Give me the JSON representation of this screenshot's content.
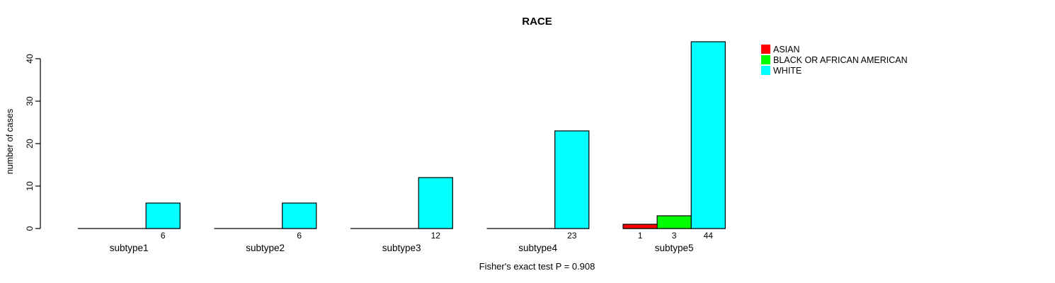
{
  "chart_data": {
    "type": "bar",
    "grouped": true,
    "title": "RACE",
    "ylabel": "number of cases",
    "categories": [
      "subtype1",
      "subtype2",
      "subtype3",
      "subtype4",
      "subtype5"
    ],
    "series": [
      {
        "name": "ASIAN",
        "color": "#ff0000",
        "values": [
          0,
          0,
          0,
          0,
          1
        ]
      },
      {
        "name": "BLACK OR AFRICAN AMERICAN",
        "color": "#00ff00",
        "values": [
          0,
          0,
          0,
          0,
          3
        ]
      },
      {
        "name": "WHITE",
        "color": "#00ffff",
        "values": [
          6,
          6,
          12,
          23,
          44
        ]
      }
    ],
    "yticks": [
      0,
      10,
      20,
      30,
      40
    ],
    "ylim": [
      0,
      44
    ],
    "bar_value_labels": "shown under each nonzero bar",
    "legend_position": "top-right",
    "grid": false,
    "annotation": "Fisher's exact test P = 0.908",
    "axis_color": "#000000",
    "background_color": "#ffffff"
  }
}
